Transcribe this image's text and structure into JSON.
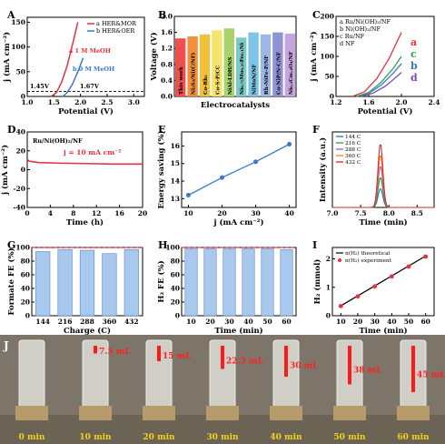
{
  "chart_data": [
    {
      "panel": "A",
      "type": "line",
      "xlabel": "Potential (V)",
      "ylabel": "j (mA cm⁻²)",
      "xlim": [
        1.0,
        3.2
      ],
      "ylim": [
        0,
        160
      ],
      "xticks": [
        "1.0",
        "1.5",
        "2.0",
        "2.5",
        "3.0"
      ],
      "yticks": [
        "0",
        "50",
        "100",
        "150"
      ],
      "legend": [
        "a HER&MOR",
        "b HER&OER"
      ],
      "annotations": [
        "a 1 M MeOH",
        "b 0 M MeOH",
        "1.45V",
        "1.67V"
      ],
      "series": [
        {
          "name": "a HER&MOR",
          "color": "#e8323c",
          "x": [
            1.45,
            1.55,
            1.65,
            1.75,
            1.85,
            1.95
          ],
          "y": [
            0,
            8,
            30,
            62,
            105,
            150
          ]
        },
        {
          "name": "b HER&OER",
          "color": "#3a78c9",
          "x": [
            1.67,
            1.75,
            1.85,
            1.95,
            2.05
          ],
          "y": [
            0,
            8,
            25,
            50,
            78
          ]
        }
      ]
    },
    {
      "panel": "B",
      "type": "bar",
      "xlabel": "Electrocatalysts",
      "ylabel": "Voltage (V)",
      "ylim": [
        0.0,
        2.0
      ],
      "yticks": [
        "0.0",
        "0.4",
        "0.8",
        "1.2",
        "1.6",
        "2.0"
      ],
      "categories": [
        "This work",
        "Ni₃S₂/Ni(C/NF)",
        "Co-Rh₂",
        "Co-S-P/CC",
        "NiAl-LDH/NS",
        "Ni₀.₇₅Mo₀.₂₅Fe₀.₁Ni",
        "NiMoN/NF",
        "Rh-NiFe-P/NF",
        "Co-NiP/N-C/NF",
        "Ni₀.₂Co₀.₈O₄/NF"
      ],
      "values": [
        1.45,
        1.5,
        1.55,
        1.65,
        1.7,
        1.47,
        1.6,
        1.55,
        1.6,
        1.57
      ],
      "colors": [
        "#ef4f4f",
        "#f08f3d",
        "#f2c13b",
        "#f5e36c",
        "#a9d36b",
        "#7cc8c2",
        "#7fc3e6",
        "#9cb7e3",
        "#8f93d6",
        "#c7a6df"
      ]
    },
    {
      "panel": "C",
      "type": "line",
      "xlabel": "Potential (V)",
      "ylabel": "j (mA cm⁻²)",
      "xlim": [
        1.2,
        2.4
      ],
      "ylim": [
        0,
        200
      ],
      "xticks": [
        "1.2",
        "1.6",
        "2.0",
        "2.4"
      ],
      "yticks": [
        "0",
        "50",
        "100",
        "150",
        "200"
      ],
      "legend": [
        "a Ru/Ni(OH)₂/NF",
        "b Ni(OH)₂/NF",
        "c Ru/NF",
        "d NF"
      ],
      "curve_letters": [
        "a",
        "c",
        "b",
        "d"
      ],
      "series": [
        {
          "name": "a Ru/Ni(OH)₂/NF",
          "color": "#e8323c",
          "x": [
            1.4,
            1.55,
            1.7,
            1.85,
            2.0
          ],
          "y": [
            0,
            12,
            45,
            95,
            160
          ]
        },
        {
          "name": "b Ni(OH)₂/NF",
          "color": "#3a78c9",
          "x": [
            1.45,
            1.6,
            1.75,
            1.9,
            2.0
          ],
          "y": [
            0,
            8,
            28,
            58,
            82
          ]
        },
        {
          "name": "c Ru/NF",
          "color": "#2aa55a",
          "x": [
            1.45,
            1.6,
            1.75,
            1.9,
            2.0
          ],
          "y": [
            0,
            10,
            35,
            70,
            100
          ]
        },
        {
          "name": "d NF",
          "color": "#7b4bb5",
          "x": [
            1.5,
            1.65,
            1.8,
            1.9,
            2.0
          ],
          "y": [
            0,
            8,
            25,
            42,
            60
          ]
        }
      ]
    },
    {
      "panel": "D",
      "type": "line",
      "title": "Ru/Ni(OH)₂/NF",
      "xlabel": "Time (h)",
      "ylabel": "j (mA cm⁻²)",
      "xlim": [
        0,
        20
      ],
      "ylim": [
        -40,
        40
      ],
      "xticks": [
        "0",
        "4",
        "8",
        "12",
        "16",
        "20"
      ],
      "yticks": [
        "-40",
        "-20",
        "0",
        "20",
        "40"
      ],
      "annotations": [
        "j = 10 mA cm⁻²"
      ],
      "series": [
        {
          "name": "",
          "color": "#e8323c",
          "x": [
            0,
            0.3,
            2,
            5,
            10,
            15,
            20
          ],
          "y": [
            11,
            9,
            7.5,
            7,
            6.5,
            6,
            6
          ]
        }
      ]
    },
    {
      "panel": "E",
      "type": "scatter",
      "xlabel": "j (mA cm⁻²)",
      "ylabel": "Energy saving (%)",
      "xlim": [
        8,
        42
      ],
      "ylim": [
        12.5,
        16.8
      ],
      "xticks": [
        "10",
        "20",
        "30",
        "40"
      ],
      "yticks": [
        "13",
        "14",
        "15",
        "16"
      ],
      "series": [
        {
          "name": "",
          "color": "#3a78c9",
          "x": [
            10,
            20,
            30,
            40
          ],
          "y": [
            13.2,
            14.2,
            15.1,
            16.1
          ]
        }
      ]
    },
    {
      "panel": "F",
      "type": "line",
      "xlabel": "Time (min)",
      "ylabel": "Intensity (a.u.)",
      "xlim": [
        7.0,
        8.8
      ],
      "xticks": [
        "7.0",
        "7.5",
        "8.0",
        "8.5"
      ],
      "legend": [
        "144 C",
        "216 C",
        "288 C",
        "360 C",
        "432 C"
      ],
      "peak_center": 7.85,
      "series": [
        {
          "name": "144 C",
          "color": "#1f77b4",
          "peak": 0.25
        },
        {
          "name": "216 C",
          "color": "#2ca02c",
          "peak": 0.4
        },
        {
          "name": "288 C",
          "color": "#9467bd",
          "peak": 0.55
        },
        {
          "name": "360 C",
          "color": "#ff7f0e",
          "peak": 0.7
        },
        {
          "name": "432 C",
          "color": "#d62728",
          "peak": 0.85
        }
      ]
    },
    {
      "panel": "G",
      "type": "bar",
      "xlabel": "Charge (C)",
      "ylabel": "Formate FE (%)",
      "ylim": [
        0,
        100
      ],
      "yticks": [
        "0",
        "20",
        "40",
        "60",
        "80",
        "100"
      ],
      "categories": [
        "144",
        "216",
        "288",
        "360",
        "432"
      ],
      "values": [
        94,
        97,
        96,
        91,
        97
      ],
      "reference_line": 100
    },
    {
      "panel": "H",
      "type": "bar",
      "xlabel": "Time (min)",
      "ylabel": "H₂ FE (%)",
      "ylim": [
        0,
        100
      ],
      "yticks": [
        "0",
        "20",
        "40",
        "60",
        "80",
        "100"
      ],
      "categories": [
        "10",
        "20",
        "30",
        "40",
        "50",
        "60"
      ],
      "values": [
        98,
        98,
        98,
        98,
        98,
        97
      ],
      "reference_line": 100
    },
    {
      "panel": "I",
      "type": "line",
      "xlabel": "Time (min)",
      "ylabel": "H₂ (mmol)",
      "xlim": [
        5,
        65
      ],
      "ylim": [
        0,
        2.4
      ],
      "xticks": [
        "10",
        "20",
        "30",
        "40",
        "50",
        "60"
      ],
      "yticks": [
        "0",
        "1",
        "2"
      ],
      "legend": [
        "n(H₂) theoretical",
        "n(H₂) experiment"
      ],
      "series": [
        {
          "name": "n(H₂) theoretical",
          "color": "#000000",
          "x": [
            10,
            60
          ],
          "y": [
            0.35,
            2.1
          ]
        },
        {
          "name": "n(H₂) experiment",
          "color": "#e8323c",
          "x": [
            10,
            20,
            30,
            40,
            50,
            60
          ],
          "y": [
            0.34,
            0.68,
            1.03,
            1.38,
            1.73,
            2.08
          ]
        }
      ]
    }
  ],
  "photo": {
    "panel": "J",
    "volumes": [
      "",
      "7.5 mL",
      "15 mL",
      "22.5 mL",
      "30 mL",
      "38 mL",
      "45 mL"
    ],
    "times": [
      "0 min",
      "10 min",
      "20 min",
      "30 min",
      "40 min",
      "50 min",
      "60 min"
    ]
  }
}
